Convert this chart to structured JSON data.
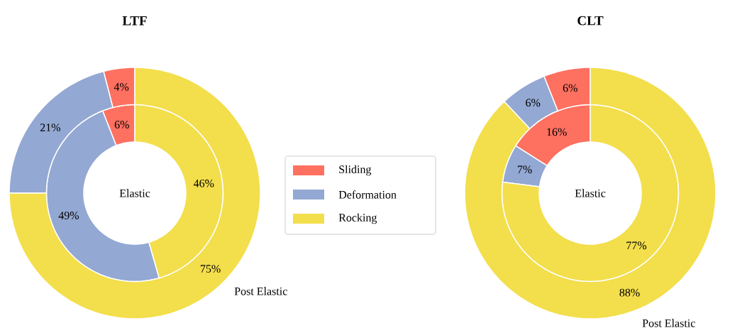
{
  "chart_data": [
    {
      "type": "donut",
      "title": "LTF",
      "categories": [
        "Sliding",
        "Deformation",
        "Rocking"
      ],
      "colors": [
        "#fe7060",
        "#93a8d2",
        "#f3de4c"
      ],
      "legend": "right",
      "series": [
        {
          "name": "Elastic",
          "values": [
            6,
            49,
            46
          ],
          "value_labels": [
            "6%",
            "49%",
            "46%"
          ]
        },
        {
          "name": "Post Elastic",
          "values": [
            4,
            21,
            75
          ],
          "value_labels": [
            "4%",
            "21%",
            "75%"
          ]
        }
      ]
    },
    {
      "type": "donut",
      "title": "CLT",
      "categories": [
        null,
        null,
        null
      ],
      "colors": [
        "#fe7060",
        "#93a8d2",
        "#f3de4c"
      ],
      "series": [
        {
          "name": "Elastic",
          "values": [
            16,
            7,
            77
          ],
          "value_labels": [
            "16%",
            "7%",
            "77%"
          ]
        },
        {
          "name": "Post Elastic",
          "values": [
            6,
            6,
            88
          ],
          "value_labels": [
            "6%",
            "6%",
            "88%"
          ]
        }
      ]
    }
  ]
}
